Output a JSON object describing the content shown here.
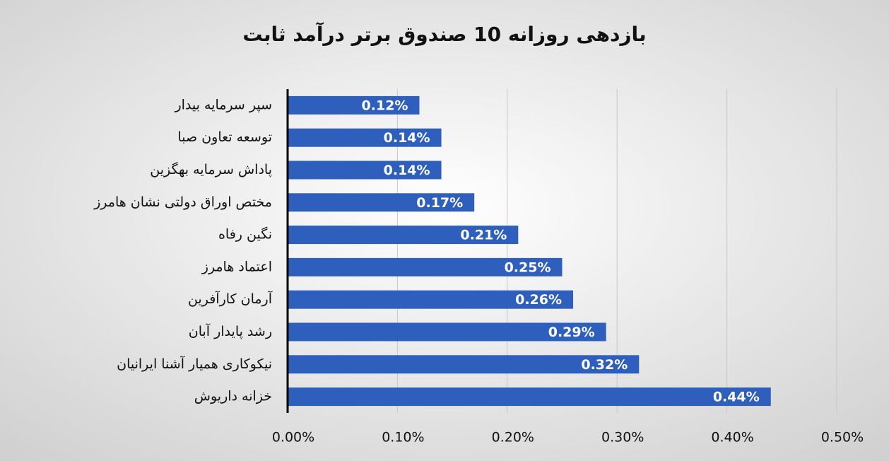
{
  "chart_data": {
    "type": "bar",
    "orientation": "horizontal",
    "title": "بازدهی روزانه 10 صندوق برتر درآمد ثابت",
    "categories": [
      "سپر سرمایه بیدار",
      "توسعه تعاون صبا",
      "پاداش سرمایه بهگزین",
      "مختص اوراق دولتی نشان هامرز",
      "نگین رفاه",
      "اعتماد هامرز",
      "آرمان کارآفرین",
      "رشد پایدار آبان",
      "نیکوکاری همیار آشنا ایرانیان",
      "خزانه داریوش"
    ],
    "values": [
      0.12,
      0.14,
      0.14,
      0.17,
      0.21,
      0.25,
      0.26,
      0.29,
      0.32,
      0.44
    ],
    "value_labels": [
      "0.12%",
      "0.14%",
      "0.14%",
      "0.17%",
      "0.21%",
      "0.25%",
      "0.26%",
      "0.29%",
      "0.32%",
      "0.44%"
    ],
    "color": "#2f5fbd",
    "xlim": [
      0,
      0.5
    ],
    "xticks": [
      {
        "value": 0,
        "label": "0.00%"
      },
      {
        "value": 0.1,
        "label": "0.10%"
      },
      {
        "value": 0.2,
        "label": "0.20%"
      },
      {
        "value": 0.3,
        "label": "0.30%"
      },
      {
        "value": 0.4,
        "label": "0.40%"
      },
      {
        "value": 0.5,
        "label": "0.50%"
      }
    ],
    "grid": true
  }
}
